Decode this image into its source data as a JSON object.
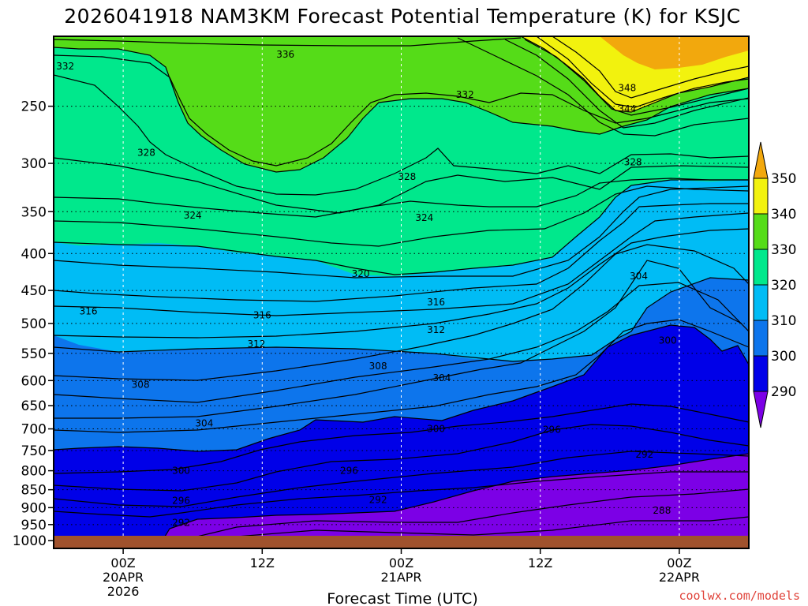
{
  "chart_data": {
    "type": "contour",
    "title": "2026041918 NAM3KM Forecast Potential Temperature (K) for KSJC",
    "xlabel": "Forecast Time (UTC)",
    "ylabel": "",
    "pressure_levels": [
      250,
      300,
      350,
      400,
      450,
      500,
      550,
      600,
      650,
      700,
      750,
      800,
      850,
      900,
      950,
      1000
    ],
    "pressure_range": [
      200,
      1025
    ],
    "forecast_hours_range": [
      -6,
      54
    ],
    "x_ticks": [
      {
        "hour": 0,
        "lines": [
          "00Z",
          "20APR",
          "2026"
        ]
      },
      {
        "hour": 12,
        "lines": [
          "12Z"
        ]
      },
      {
        "hour": 24,
        "lines": [
          "00Z",
          "21APR"
        ]
      },
      {
        "hour": 36,
        "lines": [
          "12Z"
        ]
      },
      {
        "hour": 48,
        "lines": [
          "00Z",
          "22APR"
        ]
      }
    ],
    "colorbar": {
      "units": "K",
      "levels": [
        290,
        300,
        310,
        320,
        330,
        340,
        350
      ],
      "bins": [
        {
          "min": 280,
          "max": 290,
          "color": "#7c00e6"
        },
        {
          "min": 290,
          "max": 300,
          "color": "#0000e8"
        },
        {
          "min": 300,
          "max": 310,
          "color": "#0d75ec"
        },
        {
          "min": 310,
          "max": 320,
          "color": "#00bcf5"
        },
        {
          "min": 320,
          "max": 330,
          "color": "#00e88c"
        },
        {
          "min": 330,
          "max": 340,
          "color": "#55dc18"
        },
        {
          "min": 340,
          "max": 350,
          "color": "#f2f20e"
        },
        {
          "min": 350,
          "max": 360,
          "color": "#f2a80d"
        }
      ]
    },
    "contour_interval": 2,
    "contour_labels": [
      {
        "value": 336,
        "hour": 14.0,
        "p": 212
      },
      {
        "value": 332,
        "hour": -5.0,
        "p": 220
      },
      {
        "value": 332,
        "hour": 29.5,
        "p": 241
      },
      {
        "value": 348,
        "hour": 43.5,
        "p": 236
      },
      {
        "value": 344,
        "hour": 43.5,
        "p": 252
      },
      {
        "value": 328,
        "hour": 2.0,
        "p": 290
      },
      {
        "value": 328,
        "hour": 24.5,
        "p": 313
      },
      {
        "value": 328,
        "hour": 44.0,
        "p": 299
      },
      {
        "value": 324,
        "hour": 6.0,
        "p": 354
      },
      {
        "value": 324,
        "hour": 26.0,
        "p": 357
      },
      {
        "value": 320,
        "hour": 20.5,
        "p": 427
      },
      {
        "value": 316,
        "hour": -3.0,
        "p": 481
      },
      {
        "value": 316,
        "hour": 12.0,
        "p": 487
      },
      {
        "value": 316,
        "hour": 27.0,
        "p": 467
      },
      {
        "value": 312,
        "hour": 11.5,
        "p": 534
      },
      {
        "value": 312,
        "hour": 27.0,
        "p": 510
      },
      {
        "value": 308,
        "hour": 1.5,
        "p": 608
      },
      {
        "value": 308,
        "hour": 22.0,
        "p": 573
      },
      {
        "value": 304,
        "hour": 7.0,
        "p": 688
      },
      {
        "value": 304,
        "hour": 27.5,
        "p": 595
      },
      {
        "value": 304,
        "hour": 44.5,
        "p": 430
      },
      {
        "value": 300,
        "hour": 5.0,
        "p": 800
      },
      {
        "value": 300,
        "hour": 27.0,
        "p": 700
      },
      {
        "value": 300,
        "hour": 47.0,
        "p": 528
      },
      {
        "value": 296,
        "hour": 5.0,
        "p": 880
      },
      {
        "value": 296,
        "hour": 19.5,
        "p": 800
      },
      {
        "value": 296,
        "hour": 37.0,
        "p": 702
      },
      {
        "value": 292,
        "hour": 5.0,
        "p": 945
      },
      {
        "value": 292,
        "hour": 22.0,
        "p": 878
      },
      {
        "value": 292,
        "hour": 45.0,
        "p": 760
      },
      {
        "value": 288,
        "hour": 46.5,
        "p": 908
      }
    ]
  },
  "credit": "coolwx.com/models"
}
